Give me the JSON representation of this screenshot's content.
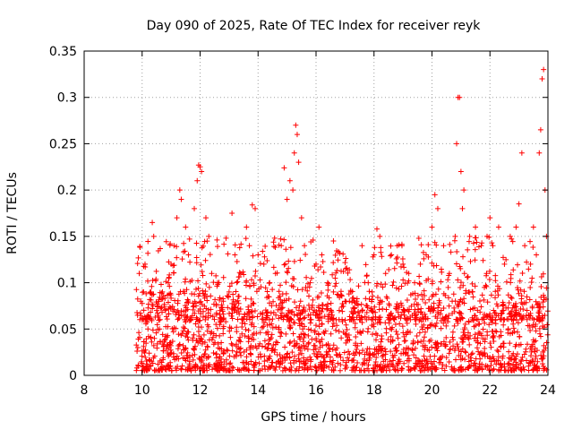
{
  "chart_data": {
    "type": "scatter",
    "title": "Day 090 of 2025, Rate Of TEC Index for receiver reyk",
    "xlabel": "GPS time / hours",
    "ylabel": "ROTI / TECUs",
    "xlim": [
      8,
      24
    ],
    "ylim": [
      0,
      0.35
    ],
    "xticks": [
      8,
      10,
      12,
      14,
      16,
      18,
      20,
      22,
      24
    ],
    "yticks": [
      0,
      0.05,
      0.1,
      0.15,
      0.2,
      0.25,
      0.3,
      0.35
    ],
    "ytick_labels": [
      "0",
      "0.05",
      "0.1",
      "0.15",
      "0.2",
      "0.25",
      "0.3",
      "0.35"
    ],
    "grid": true,
    "marker": "+",
    "series_color": "#ff0000",
    "points": [
      [
        9.85,
        0.03
      ],
      [
        9.9,
        0.11
      ],
      [
        9.95,
        0.08
      ],
      [
        10.0,
        0.06
      ],
      [
        10.05,
        0.09
      ],
      [
        10.1,
        0.12
      ],
      [
        10.2,
        0.05
      ],
      [
        10.3,
        0.09
      ],
      [
        10.35,
        0.165
      ],
      [
        10.4,
        0.15
      ],
      [
        10.5,
        0.07
      ],
      [
        10.6,
        0.05
      ],
      [
        10.7,
        0.09
      ],
      [
        10.8,
        0.07
      ],
      [
        10.9,
        0.1
      ],
      [
        11.0,
        0.12
      ],
      [
        11.1,
        0.14
      ],
      [
        11.2,
        0.17
      ],
      [
        11.3,
        0.2
      ],
      [
        11.35,
        0.19
      ],
      [
        11.5,
        0.16
      ],
      [
        11.6,
        0.13
      ],
      [
        11.8,
        0.18
      ],
      [
        11.9,
        0.21
      ],
      [
        11.95,
        0.227
      ],
      [
        12.0,
        0.225
      ],
      [
        12.05,
        0.22
      ],
      [
        12.2,
        0.17
      ],
      [
        12.3,
        0.15
      ],
      [
        12.4,
        0.11
      ],
      [
        12.6,
        0.1
      ],
      [
        12.8,
        0.08
      ],
      [
        13.0,
        0.09
      ],
      [
        13.1,
        0.175
      ],
      [
        13.2,
        0.13
      ],
      [
        13.4,
        0.11
      ],
      [
        13.6,
        0.16
      ],
      [
        13.7,
        0.14
      ],
      [
        13.8,
        0.184
      ],
      [
        13.9,
        0.18
      ],
      [
        14.0,
        0.13
      ],
      [
        14.2,
        0.12
      ],
      [
        14.4,
        0.1
      ],
      [
        14.6,
        0.11
      ],
      [
        14.8,
        0.14
      ],
      [
        14.9,
        0.224
      ],
      [
        15.0,
        0.19
      ],
      [
        15.1,
        0.21
      ],
      [
        15.2,
        0.2
      ],
      [
        15.25,
        0.24
      ],
      [
        15.3,
        0.27
      ],
      [
        15.35,
        0.26
      ],
      [
        15.4,
        0.23
      ],
      [
        15.5,
        0.17
      ],
      [
        15.6,
        0.14
      ],
      [
        15.8,
        0.1
      ],
      [
        16.0,
        0.12
      ],
      [
        16.1,
        0.16
      ],
      [
        16.2,
        0.13
      ],
      [
        16.4,
        0.1
      ],
      [
        16.6,
        0.09
      ],
      [
        16.8,
        0.07
      ],
      [
        17.0,
        0.08
      ],
      [
        17.2,
        0.09
      ],
      [
        17.4,
        0.08
      ],
      [
        17.6,
        0.07
      ],
      [
        17.8,
        0.1
      ],
      [
        18.0,
        0.13
      ],
      [
        18.1,
        0.158
      ],
      [
        18.2,
        0.15
      ],
      [
        18.4,
        0.11
      ],
      [
        18.6,
        0.13
      ],
      [
        18.8,
        0.14
      ],
      [
        19.0,
        0.12
      ],
      [
        19.2,
        0.11
      ],
      [
        19.4,
        0.1
      ],
      [
        19.6,
        0.12
      ],
      [
        19.8,
        0.13
      ],
      [
        20.0,
        0.16
      ],
      [
        20.1,
        0.195
      ],
      [
        20.2,
        0.18
      ],
      [
        20.4,
        0.14
      ],
      [
        20.6,
        0.11
      ],
      [
        20.8,
        0.15
      ],
      [
        20.85,
        0.25
      ],
      [
        20.9,
        0.3
      ],
      [
        20.95,
        0.3
      ],
      [
        21.0,
        0.22
      ],
      [
        21.05,
        0.18
      ],
      [
        21.1,
        0.2
      ],
      [
        21.3,
        0.15
      ],
      [
        21.5,
        0.16
      ],
      [
        21.7,
        0.14
      ],
      [
        21.9,
        0.15
      ],
      [
        22.0,
        0.17
      ],
      [
        22.1,
        0.14
      ],
      [
        22.3,
        0.16
      ],
      [
        22.5,
        0.12
      ],
      [
        22.7,
        0.15
      ],
      [
        22.9,
        0.16
      ],
      [
        23.0,
        0.185
      ],
      [
        23.1,
        0.24
      ],
      [
        23.2,
        0.14
      ],
      [
        23.4,
        0.12
      ],
      [
        23.5,
        0.16
      ],
      [
        23.6,
        0.13
      ],
      [
        23.7,
        0.24
      ],
      [
        23.75,
        0.265
      ],
      [
        23.8,
        0.32
      ],
      [
        23.85,
        0.33
      ],
      [
        23.9,
        0.2
      ],
      [
        23.95,
        0.15
      ]
    ],
    "dense_band": {
      "x_range": [
        9.8,
        24
      ],
      "baseline_min": 0.005,
      "typical_upper": 0.07,
      "points_per_hour": 120,
      "label": "bulk ROTI values between 0 and about 0.07 TECUs"
    }
  }
}
